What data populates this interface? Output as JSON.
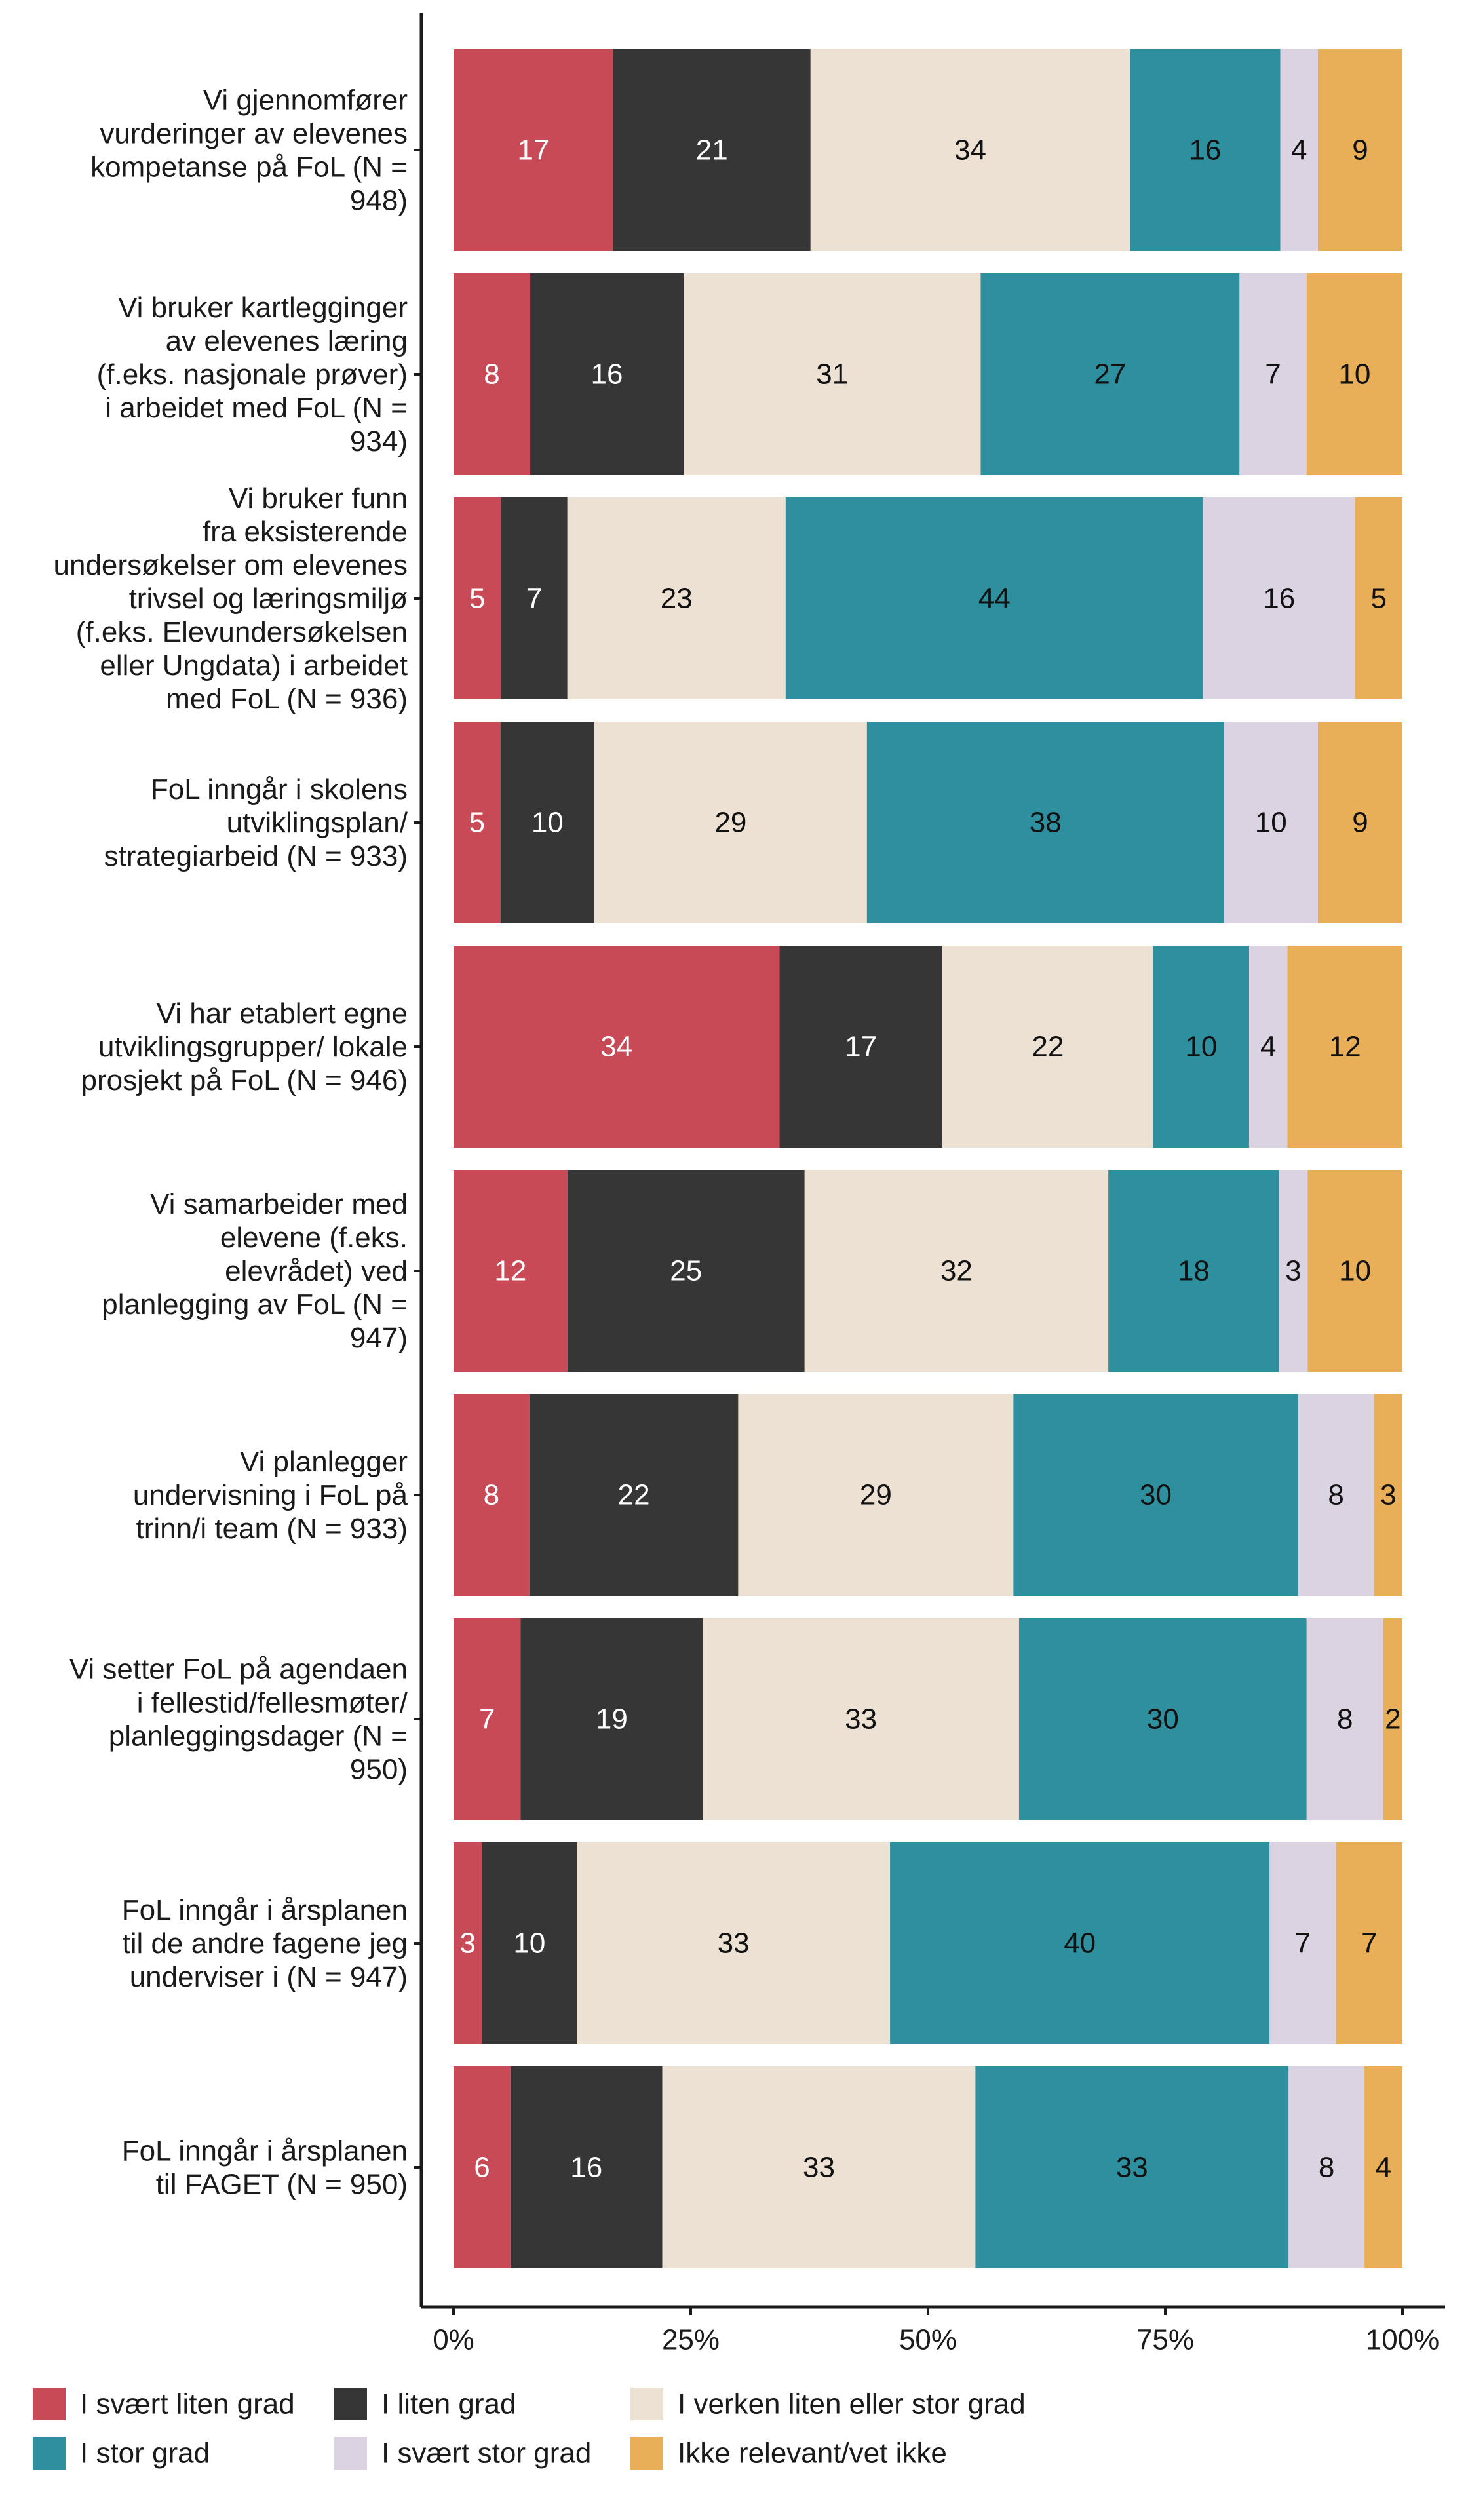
{
  "chart_data": {
    "type": "bar",
    "orientation": "horizontal",
    "stacked": "percent",
    "categories": [
      "Vi gjennomfører vurderinger av elevenes kompetanse på FoL (N = 948)",
      "Vi bruker kartlegginger av elevenes læring (f.eks. nasjonale prøver) i arbeidet med FoL (N = 934)",
      "Vi bruker funn fra eksisterende undersøkelser om elevenes trivsel og læringsmiljø (f.eks. Elevundersøkelsen eller Ungdata) i arbeidet med FoL (N = 936)",
      "FoL inngår i skolens utviklingsplan/ strategiarbeid (N = 933)",
      "Vi har etablert egne utviklingsgrupper/ lokale prosjekt på FoL (N = 946)",
      "Vi samarbeider med elevene (f.eks. elevrådet) ved planlegging av FoL (N = 947)",
      "Vi planlegger undervisning i FoL på trinn/i team (N = 933)",
      "Vi setter FoL på agendaen i fellestid/fellesmøter/ planleggingsdager (N = 950)",
      "FoL inngår i årsplanen til de andre fagene jeg underviser i (N = 947)",
      "FoL inngår i årsplanen til FAGET (N = 950)"
    ],
    "category_lines": [
      [
        "Vi gjennomfører",
        "vurderinger av elevenes",
        "kompetanse på FoL (N =",
        "948)"
      ],
      [
        "Vi bruker kartlegginger",
        "av elevenes læring",
        "(f.eks. nasjonale prøver)",
        "i arbeidet med FoL (N =",
        "934)"
      ],
      [
        "Vi bruker funn",
        "fra eksisterende",
        "undersøkelser om elevenes",
        "trivsel og læringsmiljø",
        "(f.eks. Elevundersøkelsen",
        "eller Ungdata) i arbeidet",
        "med FoL (N = 936)"
      ],
      [
        "FoL inngår i skolens",
        "utviklingsplan/",
        "strategiarbeid (N = 933)"
      ],
      [
        "Vi har etablert egne",
        "utviklingsgrupper/ lokale",
        "prosjekt på FoL (N = 946)"
      ],
      [
        "Vi samarbeider med",
        "elevene (f.eks.",
        "elevrådet) ved",
        "planlegging av FoL (N =",
        "947)"
      ],
      [
        "Vi planlegger",
        "undervisning i FoL på",
        "trinn/i team (N = 933)"
      ],
      [
        "Vi setter FoL på agendaen",
        "i fellestid/fellesmøter/",
        "planleggingsdager (N =",
        "950)"
      ],
      [
        "FoL inngår i årsplanen",
        "til de andre fagene jeg",
        "underviser i (N = 947)"
      ],
      [
        "FoL inngår i årsplanen",
        "til FAGET (N = 950)"
      ]
    ],
    "series": [
      {
        "name": "I svært liten grad",
        "color": "#c84a56",
        "text_color": "#ffffff",
        "values": [
          17,
          8,
          5,
          5,
          34,
          12,
          8,
          7,
          3,
          6
        ]
      },
      {
        "name": "I liten grad",
        "color": "#363636",
        "text_color": "#ffffff",
        "values": [
          21,
          16,
          7,
          10,
          17,
          25,
          22,
          19,
          10,
          16
        ]
      },
      {
        "name": "I verken liten eller stor grad",
        "color": "#ece1d3",
        "text_color": "#111111",
        "values": [
          34,
          31,
          23,
          29,
          22,
          32,
          29,
          33,
          33,
          33
        ]
      },
      {
        "name": "I stor grad",
        "color": "#2e8f9f",
        "text_color": "#111111",
        "values": [
          16,
          27,
          44,
          38,
          10,
          18,
          30,
          30,
          40,
          33
        ]
      },
      {
        "name": "I svært stor grad",
        "color": "#dcd3e2",
        "text_color": "#111111",
        "values": [
          4,
          7,
          16,
          10,
          4,
          3,
          8,
          8,
          7,
          8
        ]
      },
      {
        "name": "Ikke relevant/vet ikke",
        "color": "#e8ae58",
        "text_color": "#111111",
        "values": [
          9,
          10,
          5,
          9,
          12,
          10,
          3,
          2,
          7,
          4
        ]
      }
    ],
    "xlim": [
      0,
      100
    ],
    "x_ticks": [
      0,
      25,
      50,
      75,
      100
    ],
    "x_tick_labels": [
      "0%",
      "25%",
      "50%",
      "75%",
      "100%"
    ],
    "title": "",
    "xlabel": "",
    "ylabel": "",
    "grid": false,
    "legend_position": "bottom"
  }
}
